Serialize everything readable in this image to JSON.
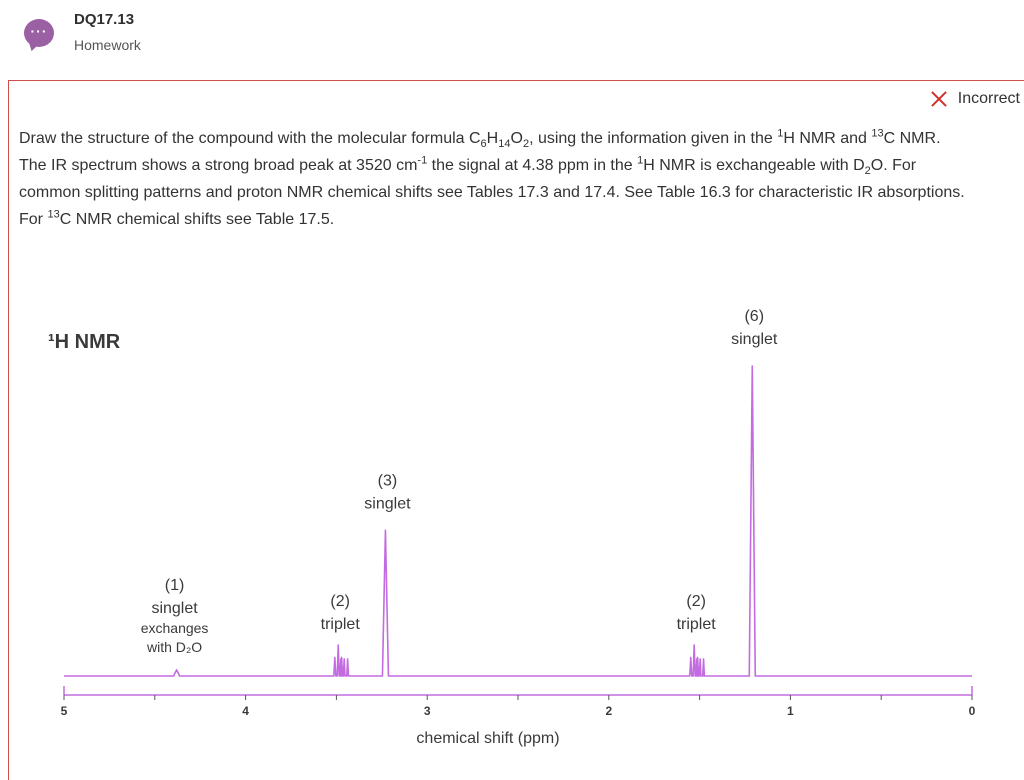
{
  "header": {
    "avatar_glyph": "···",
    "title": "DQ17.13",
    "subtitle": "Homework"
  },
  "status": {
    "label": "Incorrect",
    "icon": "close-icon",
    "color": "#d0312d"
  },
  "question": {
    "lines": [
      [
        "Draw the structure of the compound with the molecular formula C",
        {
          "sub": "6"
        },
        "H",
        {
          "sub": "14"
        },
        "O",
        {
          "sub": "2"
        },
        ", using the information given in the ",
        {
          "sup": "1"
        },
        "H NMR and ",
        {
          "sup": "13"
        },
        "C NMR."
      ],
      [
        "The IR spectrum shows a strong broad peak at 3520 cm",
        {
          "sup": "-1"
        },
        " the signal at 4.38 ppm in the ",
        {
          "sup": "1"
        },
        "H NMR is exchangeable with D",
        {
          "sub": "2"
        },
        "O. For"
      ],
      [
        "common splitting patterns and proton NMR chemical shifts see Tables 17.3 and 17.4. See Table 16.3 for characteristic IR absorptions."
      ],
      [
        "For ",
        {
          "sup": "13"
        },
        "C NMR chemical shifts see Table 17.5."
      ]
    ]
  },
  "chart_data": {
    "type": "line",
    "title": "¹H NMR",
    "xlabel": "chemical shift (ppm)",
    "xlim": [
      5,
      0
    ],
    "ticks": [
      "5",
      "4",
      "3",
      "2",
      "1",
      "0"
    ],
    "line_color": "#c36be0",
    "peaks": [
      {
        "shift": 4.38,
        "height": 0.02,
        "multiplicity": "singlet",
        "integration": "(1)",
        "notes": [
          "exchanges",
          "with D₂O"
        ]
      },
      {
        "shift": 3.49,
        "height": 0.1,
        "multiplicity": "triplet",
        "integration": "(2)"
      },
      {
        "shift": 3.23,
        "height": 0.47,
        "multiplicity": "singlet",
        "integration": "(3)"
      },
      {
        "shift": 1.53,
        "height": 0.1,
        "multiplicity": "triplet",
        "integration": "(2)"
      },
      {
        "shift": 1.21,
        "height": 1.0,
        "multiplicity": "singlet",
        "integration": "(6)"
      }
    ]
  }
}
